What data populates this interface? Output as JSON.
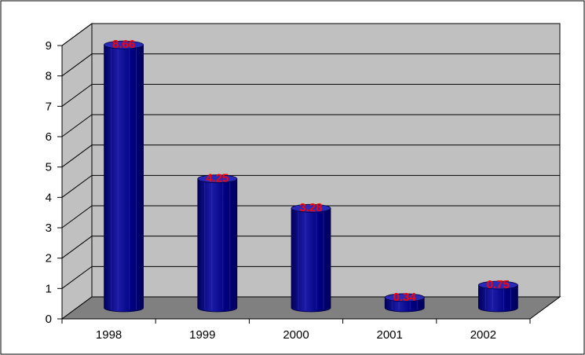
{
  "chart_data": {
    "type": "bar",
    "categories": [
      "1998",
      "1999",
      "2000",
      "2001",
      "2002"
    ],
    "values": [
      8.66,
      4.25,
      3.28,
      0.34,
      0.75
    ],
    "data_labels": [
      "8.66",
      "4.25",
      "3.28",
      "0.34",
      "0.75"
    ],
    "title": "",
    "xlabel": "",
    "ylabel": "",
    "ylim": [
      0,
      9
    ],
    "yticks": [
      "0",
      "1",
      "2",
      "3",
      "4",
      "5",
      "6",
      "7",
      "8",
      "9"
    ],
    "grid": true,
    "legend": "none",
    "style": "3d-cylinder",
    "colors": {
      "bar": "#000080",
      "bar_highlight": "#2a2ab8",
      "data_label": "#ff0000",
      "back_wall": "#c0c0c0",
      "side_wall": "#c0c0c0",
      "floor": "#808080",
      "gridline": "#000000"
    }
  }
}
